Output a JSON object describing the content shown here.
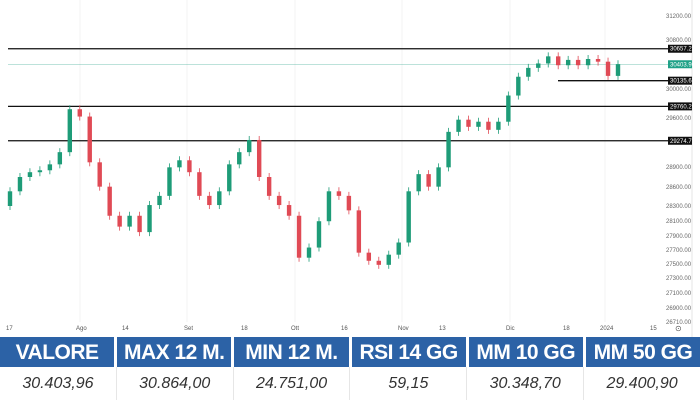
{
  "chart_data": {
    "type": "candlestick",
    "y_ticks": [
      "31200.00",
      "30800.00",
      "30000.00",
      "29600.00",
      "28900.00",
      "28600.00",
      "28300.00",
      "28100.00",
      "27900.00",
      "27700.00",
      "27500.00",
      "27300.00",
      "27100.00",
      "26900.00",
      "26710.00"
    ],
    "x_ticks": [
      "17",
      "Ago",
      "14",
      "Set",
      "18",
      "Ott",
      "16",
      "Nov",
      "13",
      "Dic",
      "18",
      "2024",
      "15"
    ],
    "levels": [
      {
        "value": 30657.22,
        "label": "30657.22",
        "color": "#111111"
      },
      {
        "value": 30403.96,
        "label": "30403.96",
        "color": "#1fa187"
      },
      {
        "value": 30135.67,
        "label": "30135.67",
        "color": "#111111"
      },
      {
        "value": 29760.26,
        "label": "29760.26",
        "color": "#111111"
      },
      {
        "value": 29274.71,
        "label": "29274.71",
        "color": "#111111"
      }
    ],
    "up_color": "#1e9c78",
    "down_color": "#e04a55",
    "first_open": 28300,
    "closes": [
      28532,
      28750,
      28822,
      28851,
      28938,
      29112,
      29721,
      29620,
      28967,
      28605,
      28170,
      28025,
      28170,
      27952,
      28315,
      28460,
      28895,
      28996,
      28822,
      28460,
      28315,
      28532,
      28938,
      29112,
      29286,
      28750,
      28460,
      28315,
      28170,
      27590,
      27735,
      28097,
      28532,
      28460,
      28242,
      27662,
      27546,
      27488,
      27633,
      27807,
      28532,
      28793,
      28605,
      28895,
      29402,
      29576,
      29474,
      29547,
      29431,
      29547,
      29910,
      30200,
      30345,
      30417,
      30533,
      30388,
      30475,
      30388,
      30490,
      30446,
      30214,
      30404
    ]
  },
  "table": {
    "headers": [
      "VALORE",
      "MAX 12 M.",
      "MIN 12 M.",
      "RSI 14 GG",
      "MM 10 GG",
      "MM 50 GG"
    ],
    "values": [
      "30.403,96",
      "30.864,00",
      "24.751,00",
      "59,15",
      "30.348,70",
      "29.400,90"
    ]
  }
}
